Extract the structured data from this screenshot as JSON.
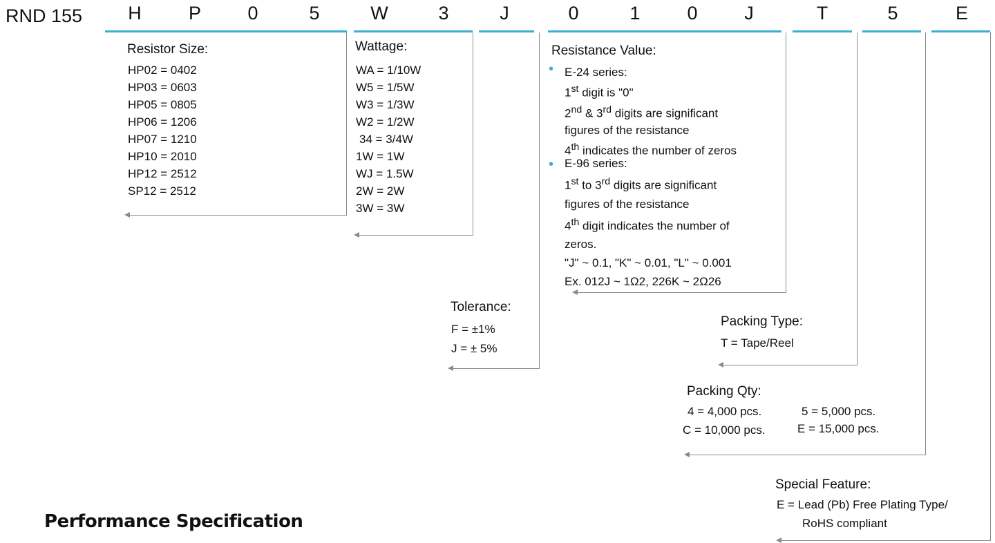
{
  "prefix": "RND 155",
  "code": [
    "H",
    "P",
    "0",
    "5",
    "W",
    "3",
    "J",
    "0",
    "1",
    "0",
    "J",
    "T",
    "5",
    "E"
  ],
  "colors": {
    "underline": "#3aaed4",
    "connector": "#8a8a8a",
    "bullet": "#3aaed4"
  },
  "resistor_size": {
    "title": "Resistor Size:",
    "items": [
      "HP02 = 0402",
      "HP03 = 0603",
      "HP05 = 0805",
      "HP06 = 1206",
      "HP07 = 1210",
      "HP10 = 2010",
      "HP12 = 2512",
      "SP12 = 2512"
    ]
  },
  "wattage": {
    "title": "Wattage:",
    "items": [
      "WA = 1/10W",
      "W5 = 1/5W",
      "W3 = 1/3W",
      "W2 = 1/2W",
      "34 = 3/4W",
      "1W = 1W",
      "WJ = 1.5W",
      "2W = 2W",
      "3W = 3W"
    ]
  },
  "resistance": {
    "title": "Resistance Value:",
    "bullet": "•",
    "e24_label": "E-24 series:",
    "e24_l1_a": "1",
    "e24_l1_sup": "st",
    "e24_l1_b": " digit is \"0\"",
    "e24_l2_a": "2",
    "e24_l2_sup1": "nd",
    "e24_l2_mid": " & 3",
    "e24_l2_sup2": "rd",
    "e24_l2_b": " digits are significant",
    "e24_l3": "figures of the resistance",
    "e24_l4_a": "4",
    "e24_l4_sup": "th",
    "e24_l4_b": " indicates the number of zeros",
    "e96_label": "E-96 series:",
    "e96_l1_a": "1",
    "e96_l1_sup1": "st",
    "e96_l1_mid": " to 3",
    "e96_l1_sup2": "rd",
    "e96_l1_b": " digits are significant",
    "e96_l2": "figures of the resistance",
    "e96_l3_a": "4",
    "e96_l3_sup": "th",
    "e96_l3_b": " digit indicates the number of",
    "e96_l4": "zeros.",
    "e96_l5": "\"J\" ~ 0.1, \"K\" ~ 0.01, \"L\" ~ 0.001",
    "e96_l6": "Ex. 012J ~ 1Ω2, 226K ~ 2Ω26"
  },
  "tolerance": {
    "title": "Tolerance:",
    "items": [
      "F = ±1%",
      "J = ± 5%"
    ]
  },
  "packing_type": {
    "title": "Packing Type:",
    "items": [
      "T = Tape/Reel"
    ]
  },
  "packing_qty": {
    "title": "Packing Qty:",
    "items": [
      "4 = 4,000 pcs.",
      "5 = 5,000 pcs.",
      "C = 10,000 pcs.",
      "E = 15,000 pcs."
    ]
  },
  "special_feature": {
    "title": "Special Feature:",
    "items": [
      "E = Lead (Pb) Free Plating Type/",
      "RoHS compliant"
    ]
  },
  "performance_title": "Performance Specification"
}
